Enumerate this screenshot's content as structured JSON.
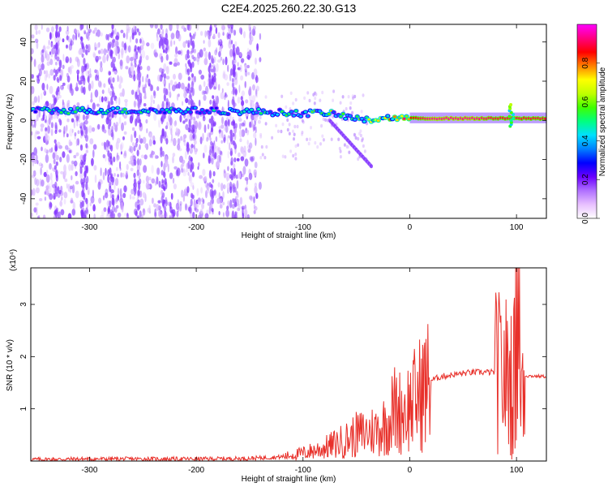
{
  "title": "C2E4.2025.260.22.30.G13",
  "chart_data": [
    {
      "type": "heatmap",
      "xlabel": "Height of straight line (km)",
      "ylabel": "Frequency (Hz)",
      "xlim": [
        -355,
        128
      ],
      "ylim": [
        -50,
        49
      ],
      "xticks": [
        -300,
        -200,
        -100,
        0,
        100
      ],
      "yticks": [
        -40,
        -20,
        0,
        20,
        40
      ],
      "colorbar": {
        "label": "Normalized spectral amplitude",
        "range": [
          0,
          1
        ],
        "ticks": [
          0.0,
          0.2,
          0.4,
          0.6,
          0.8
        ],
        "colors": [
          "#ffffff",
          "#e8c0ff",
          "#b070ff",
          "#6a00ff",
          "#0000ff",
          "#0080ff",
          "#00e0ff",
          "#00ff80",
          "#40ff00",
          "#c0ff00",
          "#ffff00",
          "#ff8000",
          "#ff0000",
          "#ff0080",
          "#ff00ff"
        ]
      },
      "ridge": [
        {
          "x": -355,
          "y": 5,
          "amp": 0.45
        },
        {
          "x": -300,
          "y": 5,
          "amp": 0.5
        },
        {
          "x": -250,
          "y": 5,
          "amp": 0.5
        },
        {
          "x": -200,
          "y": 5,
          "amp": 0.45
        },
        {
          "x": -150,
          "y": 4.5,
          "amp": 0.45
        },
        {
          "x": -120,
          "y": 4,
          "amp": 0.5
        },
        {
          "x": -100,
          "y": 3.5,
          "amp": 0.5
        },
        {
          "x": -80,
          "y": 4,
          "amp": 0.55
        },
        {
          "x": -60,
          "y": 2,
          "amp": 0.55
        },
        {
          "x": -40,
          "y": 0,
          "amp": 0.6
        },
        {
          "x": -20,
          "y": 1.5,
          "amp": 0.7
        },
        {
          "x": 0,
          "y": 1,
          "amp": 0.85
        },
        {
          "x": 20,
          "y": 1,
          "amp": 0.95
        },
        {
          "x": 40,
          "y": 1,
          "amp": 0.95
        },
        {
          "x": 60,
          "y": 1,
          "amp": 0.95
        },
        {
          "x": 80,
          "y": 1,
          "amp": 0.9
        },
        {
          "x": 100,
          "y": 1,
          "amp": 0.9
        },
        {
          "x": 128,
          "y": 1,
          "amp": 0.9
        }
      ]
    },
    {
      "type": "line",
      "xlabel": "Height of straight line (km)",
      "ylabel": "SNR (10 * v/v)",
      "y_multiplier": "(x10⁴)",
      "xlim": [
        -355,
        128
      ],
      "ylim": [
        0,
        3.7
      ],
      "xticks": [
        -300,
        -200,
        -100,
        0,
        100
      ],
      "yticks": [
        1,
        2,
        3
      ],
      "color": "#e8302a",
      "series": [
        {
          "x": [
            -355,
            -300,
            -250,
            -200,
            -150,
            -120,
            -100,
            -80,
            -60,
            -50,
            -40,
            -30,
            -20,
            -15,
            -10,
            0,
            10,
            20,
            30,
            40,
            50,
            60,
            70,
            80,
            85,
            90,
            95,
            100,
            102,
            105,
            110,
            128
          ],
          "y": [
            0.03,
            0.04,
            0.04,
            0.04,
            0.05,
            0.08,
            0.15,
            0.25,
            0.4,
            0.5,
            0.55,
            0.6,
            0.75,
            1.0,
            0.95,
            1.05,
            1.3,
            1.55,
            1.62,
            1.65,
            1.68,
            1.7,
            1.7,
            1.7,
            1.7,
            1.65,
            1.6,
            1.6,
            1.6,
            1.65,
            1.63,
            1.62
          ]
        }
      ]
    }
  ]
}
